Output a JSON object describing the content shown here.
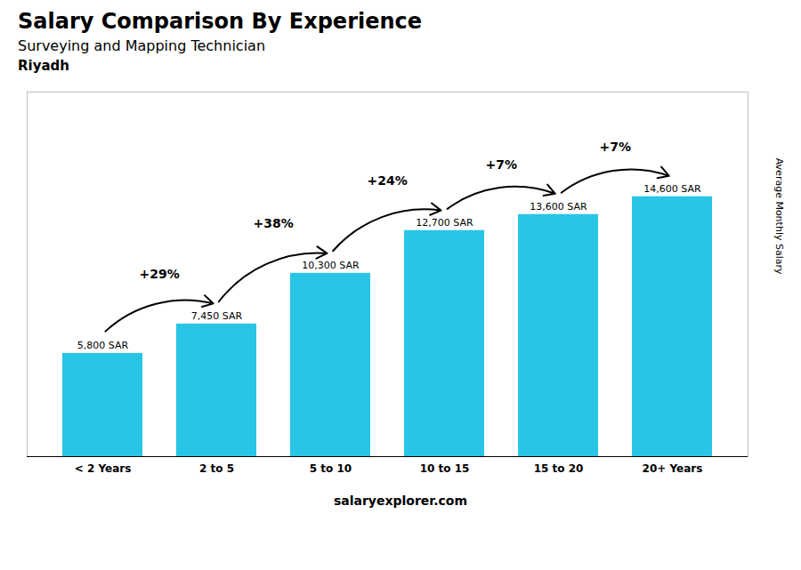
{
  "chart_data": {
    "type": "bar",
    "title": "Salary Comparison By Experience",
    "subtitle": "Surveying and Mapping Technician",
    "annotations": [
      "Riyadh",
      "salaryexplorer.com"
    ],
    "categories": [
      "< 2 Years",
      "2 to 5",
      "5 to 10",
      "10 to 15",
      "15 to 20",
      "20+ Years"
    ],
    "values": [
      5800,
      7450,
      10300,
      12700,
      13600,
      14600
    ],
    "value_labels": [
      "5,800 SAR",
      "7,450 SAR",
      "10,300 SAR",
      "12,700 SAR",
      "13,600 SAR",
      "14,600 SAR"
    ],
    "data_labels": true,
    "change_labels": [
      "+29%",
      "+38%",
      "+24%",
      "+7%",
      "+7%"
    ],
    "color": "#29C5E6",
    "ylabel": "Average Monthly Salary",
    "ylim": [
      0,
      20480
    ],
    "grid": false,
    "tick_labels": "x"
  }
}
